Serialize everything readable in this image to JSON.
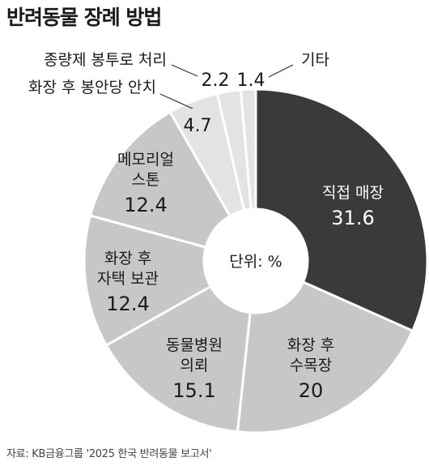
{
  "chart_data": {
    "type": "donut",
    "title": "반려동물 장례 방법",
    "center_label": "단위: %",
    "source": "자료: KB금융그룹 '2025 한국 반려동물 보고서'",
    "unit": "%",
    "slices": [
      {
        "label": "직접 매장",
        "value": 31.6,
        "color": "#3a3a3a",
        "text_color": "#ffffff"
      },
      {
        "label": "화장 후 수목장",
        "value": 20,
        "color": "#c7c7c7",
        "text_color": "#1a1a1a"
      },
      {
        "label": "동물병원 의뢰",
        "value": 15.1,
        "color": "#c7c7c7",
        "text_color": "#1a1a1a"
      },
      {
        "label": "화장 후 자택 보관",
        "value": 12.4,
        "color": "#c7c7c7",
        "text_color": "#1a1a1a"
      },
      {
        "label": "메모리얼 스톤",
        "value": 12.4,
        "color": "#c7c7c7",
        "text_color": "#1a1a1a"
      },
      {
        "label": "화장 후 봉안당 안치",
        "value": 4.7,
        "color": "#e3e3e3",
        "text_color": "#1a1a1a"
      },
      {
        "label": "종량제 봉투로 처리",
        "value": 2.2,
        "color": "#e3e3e3",
        "text_color": "#1a1a1a"
      },
      {
        "label": "기타",
        "value": 1.4,
        "color": "#e3e3e3",
        "text_color": "#1a1a1a"
      }
    ]
  }
}
